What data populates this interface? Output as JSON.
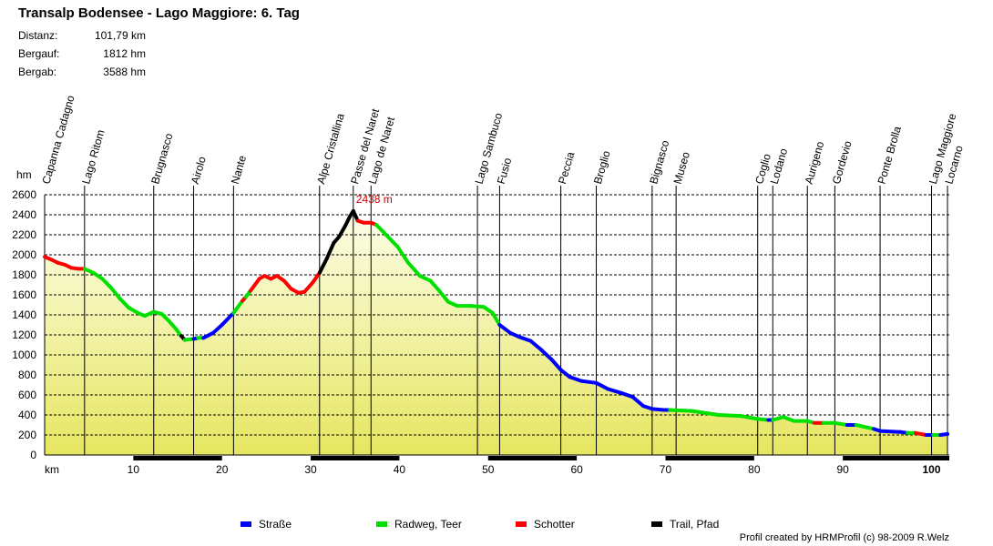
{
  "header": {
    "title": "Transalp Bodensee - Lago Maggiore: 6. Tag",
    "stats": [
      {
        "label": "Distanz:",
        "value": "101,79 km"
      },
      {
        "label": "Bergauf:",
        "value": "1812 hm"
      },
      {
        "label": "Bergab:",
        "value": "3588 hm"
      }
    ]
  },
  "credit": "Profil created by HRMProfil (c) 98-2009 R.Welz",
  "chart_data": {
    "type": "area",
    "title": "Transalp Bodensee - Lago Maggiore: 6. Tag",
    "xlabel": "km",
    "ylabel": "hm",
    "xlim": [
      0,
      102
    ],
    "ylim": [
      0,
      2600
    ],
    "xticks": [
      10,
      20,
      30,
      40,
      50,
      60,
      70,
      80,
      90,
      100
    ],
    "yticks": [
      0,
      200,
      400,
      600,
      800,
      1000,
      1200,
      1400,
      1600,
      1800,
      2000,
      2200,
      2400,
      2600
    ],
    "grid": true,
    "peak_label": {
      "x": 34.8,
      "y": 2438,
      "text": "2438 m"
    },
    "colors": {
      "road": "#0000ff",
      "bikepath": "#00e000",
      "gravel": "#ff0000",
      "trail": "#000000",
      "fill_top": "#fdfde8",
      "fill_bottom": "#e6e661",
      "peak_text": "#cc0000"
    },
    "surface_legend": [
      {
        "key": "road",
        "label": "Straße"
      },
      {
        "key": "bikepath",
        "label": "Radweg, Teer"
      },
      {
        "key": "gravel",
        "label": "Schotter"
      },
      {
        "key": "trail",
        "label": "Trail, Pfad"
      }
    ],
    "waypoints": [
      {
        "name": "Capanna Cadagno",
        "km": 0.0
      },
      {
        "name": "Lago Ritom",
        "km": 4.5
      },
      {
        "name": "Brugnasco",
        "km": 12.3
      },
      {
        "name": "Airolo",
        "km": 16.8
      },
      {
        "name": "Nante",
        "km": 21.3
      },
      {
        "name": "Alpe Cristallina",
        "km": 31.0
      },
      {
        "name": "Passe del Naret",
        "km": 34.8
      },
      {
        "name": "Lago de Naret",
        "km": 36.8
      },
      {
        "name": "Lago  Sambuco",
        "km": 48.8
      },
      {
        "name": "Fusio",
        "km": 51.3
      },
      {
        "name": "Peccia",
        "km": 58.2
      },
      {
        "name": "Broglio",
        "km": 62.2
      },
      {
        "name": "Bignasco",
        "km": 68.5
      },
      {
        "name": "Museo",
        "km": 71.2
      },
      {
        "name": "Coglio",
        "km": 80.4
      },
      {
        "name": "Lodano",
        "km": 82.1
      },
      {
        "name": "Aurigeno",
        "km": 86.0
      },
      {
        "name": "Gordevio",
        "km": 89.1
      },
      {
        "name": "Ponte Brolla",
        "km": 94.2
      },
      {
        "name": "Lago Maggiore",
        "km": 100.0
      },
      {
        "name": "Locarno",
        "km": 101.8
      }
    ],
    "profile": [
      {
        "km": 0.0,
        "ele": 1980,
        "s": "gravel"
      },
      {
        "km": 0.8,
        "ele": 1950,
        "s": "gravel"
      },
      {
        "km": 1.5,
        "ele": 1920,
        "s": "gravel"
      },
      {
        "km": 2.3,
        "ele": 1900,
        "s": "gravel"
      },
      {
        "km": 3.0,
        "ele": 1870,
        "s": "gravel"
      },
      {
        "km": 3.8,
        "ele": 1860,
        "s": "gravel"
      },
      {
        "km": 4.5,
        "ele": 1860,
        "s": "bikepath"
      },
      {
        "km": 5.5,
        "ele": 1820,
        "s": "bikepath"
      },
      {
        "km": 6.5,
        "ele": 1760,
        "s": "bikepath"
      },
      {
        "km": 7.5,
        "ele": 1670,
        "s": "bikepath"
      },
      {
        "km": 8.5,
        "ele": 1560,
        "s": "bikepath"
      },
      {
        "km": 9.5,
        "ele": 1470,
        "s": "bikepath"
      },
      {
        "km": 10.5,
        "ele": 1420,
        "s": "bikepath"
      },
      {
        "km": 11.3,
        "ele": 1390,
        "s": "bikepath"
      },
      {
        "km": 12.3,
        "ele": 1430,
        "s": "bikepath"
      },
      {
        "km": 13.2,
        "ele": 1410,
        "s": "bikepath"
      },
      {
        "km": 14.0,
        "ele": 1340,
        "s": "bikepath"
      },
      {
        "km": 14.8,
        "ele": 1260,
        "s": "bikepath"
      },
      {
        "km": 15.4,
        "ele": 1190,
        "s": "trail"
      },
      {
        "km": 15.8,
        "ele": 1150,
        "s": "bikepath"
      },
      {
        "km": 16.8,
        "ele": 1160,
        "s": "road"
      },
      {
        "km": 17.3,
        "ele": 1170,
        "s": "bikepath"
      },
      {
        "km": 17.9,
        "ele": 1170,
        "s": "road"
      },
      {
        "km": 19.0,
        "ele": 1220,
        "s": "road"
      },
      {
        "km": 20.0,
        "ele": 1300,
        "s": "road"
      },
      {
        "km": 21.3,
        "ele": 1420,
        "s": "bikepath"
      },
      {
        "km": 22.3,
        "ele": 1540,
        "s": "gravel"
      },
      {
        "km": 22.7,
        "ele": 1580,
        "s": "bikepath"
      },
      {
        "km": 23.2,
        "ele": 1640,
        "s": "gravel"
      },
      {
        "km": 24.2,
        "ele": 1760,
        "s": "gravel"
      },
      {
        "km": 24.8,
        "ele": 1790,
        "s": "gravel"
      },
      {
        "km": 25.5,
        "ele": 1760,
        "s": "gravel"
      },
      {
        "km": 26.2,
        "ele": 1790,
        "s": "gravel"
      },
      {
        "km": 27.0,
        "ele": 1740,
        "s": "gravel"
      },
      {
        "km": 27.8,
        "ele": 1660,
        "s": "gravel"
      },
      {
        "km": 28.6,
        "ele": 1620,
        "s": "gravel"
      },
      {
        "km": 29.3,
        "ele": 1630,
        "s": "gravel"
      },
      {
        "km": 30.2,
        "ele": 1720,
        "s": "gravel"
      },
      {
        "km": 31.0,
        "ele": 1820,
        "s": "trail"
      },
      {
        "km": 31.8,
        "ele": 1960,
        "s": "trail"
      },
      {
        "km": 32.6,
        "ele": 2120,
        "s": "trail"
      },
      {
        "km": 33.2,
        "ele": 2180,
        "s": "trail"
      },
      {
        "km": 33.9,
        "ele": 2290,
        "s": "trail"
      },
      {
        "km": 34.4,
        "ele": 2380,
        "s": "trail"
      },
      {
        "km": 34.8,
        "ele": 2438,
        "s": "trail"
      },
      {
        "km": 35.3,
        "ele": 2340,
        "s": "gravel"
      },
      {
        "km": 36.0,
        "ele": 2320,
        "s": "gravel"
      },
      {
        "km": 36.8,
        "ele": 2320,
        "s": "gravel"
      },
      {
        "km": 37.4,
        "ele": 2300,
        "s": "bikepath"
      },
      {
        "km": 38.5,
        "ele": 2200,
        "s": "bikepath"
      },
      {
        "km": 39.8,
        "ele": 2080,
        "s": "bikepath"
      },
      {
        "km": 41.0,
        "ele": 1920,
        "s": "bikepath"
      },
      {
        "km": 42.3,
        "ele": 1790,
        "s": "bikepath"
      },
      {
        "km": 43.5,
        "ele": 1740,
        "s": "bikepath"
      },
      {
        "km": 44.5,
        "ele": 1640,
        "s": "bikepath"
      },
      {
        "km": 45.5,
        "ele": 1530,
        "s": "bikepath"
      },
      {
        "km": 46.5,
        "ele": 1490,
        "s": "bikepath"
      },
      {
        "km": 48.0,
        "ele": 1490,
        "s": "bikepath"
      },
      {
        "km": 49.5,
        "ele": 1480,
        "s": "bikepath"
      },
      {
        "km": 50.5,
        "ele": 1420,
        "s": "bikepath"
      },
      {
        "km": 51.3,
        "ele": 1300,
        "s": "road"
      },
      {
        "km": 52.5,
        "ele": 1220,
        "s": "road"
      },
      {
        "km": 53.5,
        "ele": 1180,
        "s": "road"
      },
      {
        "km": 54.8,
        "ele": 1140,
        "s": "road"
      },
      {
        "km": 56.0,
        "ele": 1050,
        "s": "road"
      },
      {
        "km": 57.2,
        "ele": 950,
        "s": "road"
      },
      {
        "km": 58.2,
        "ele": 850,
        "s": "road"
      },
      {
        "km": 59.2,
        "ele": 780,
        "s": "road"
      },
      {
        "km": 60.5,
        "ele": 740,
        "s": "road"
      },
      {
        "km": 62.2,
        "ele": 720,
        "s": "road"
      },
      {
        "km": 63.5,
        "ele": 660,
        "s": "road"
      },
      {
        "km": 65.0,
        "ele": 620,
        "s": "road"
      },
      {
        "km": 66.3,
        "ele": 580,
        "s": "road"
      },
      {
        "km": 67.5,
        "ele": 490,
        "s": "road"
      },
      {
        "km": 68.5,
        "ele": 460,
        "s": "road"
      },
      {
        "km": 69.8,
        "ele": 450,
        "s": "road"
      },
      {
        "km": 70.5,
        "ele": 450,
        "s": "bikepath"
      },
      {
        "km": 73.0,
        "ele": 440,
        "s": "bikepath"
      },
      {
        "km": 76.0,
        "ele": 400,
        "s": "bikepath"
      },
      {
        "km": 78.5,
        "ele": 390,
        "s": "bikepath"
      },
      {
        "km": 80.4,
        "ele": 360,
        "s": "bikepath"
      },
      {
        "km": 81.6,
        "ele": 350,
        "s": "road"
      },
      {
        "km": 82.1,
        "ele": 350,
        "s": "bikepath"
      },
      {
        "km": 83.3,
        "ele": 380,
        "s": "bikepath"
      },
      {
        "km": 84.5,
        "ele": 340,
        "s": "bikepath"
      },
      {
        "km": 86.0,
        "ele": 340,
        "s": "bikepath"
      },
      {
        "km": 86.8,
        "ele": 320,
        "s": "gravel"
      },
      {
        "km": 87.8,
        "ele": 320,
        "s": "bikepath"
      },
      {
        "km": 89.1,
        "ele": 320,
        "s": "bikepath"
      },
      {
        "km": 90.5,
        "ele": 300,
        "s": "road"
      },
      {
        "km": 91.5,
        "ele": 300,
        "s": "bikepath"
      },
      {
        "km": 93.5,
        "ele": 260,
        "s": "road"
      },
      {
        "km": 94.2,
        "ele": 240,
        "s": "road"
      },
      {
        "km": 96.5,
        "ele": 230,
        "s": "road"
      },
      {
        "km": 97.3,
        "ele": 220,
        "s": "bikepath"
      },
      {
        "km": 98.2,
        "ele": 220,
        "s": "gravel"
      },
      {
        "km": 99.4,
        "ele": 200,
        "s": "road"
      },
      {
        "km": 100.2,
        "ele": 200,
        "s": "bikepath"
      },
      {
        "km": 101.0,
        "ele": 200,
        "s": "road"
      },
      {
        "km": 101.8,
        "ele": 210,
        "s": "road"
      }
    ]
  }
}
